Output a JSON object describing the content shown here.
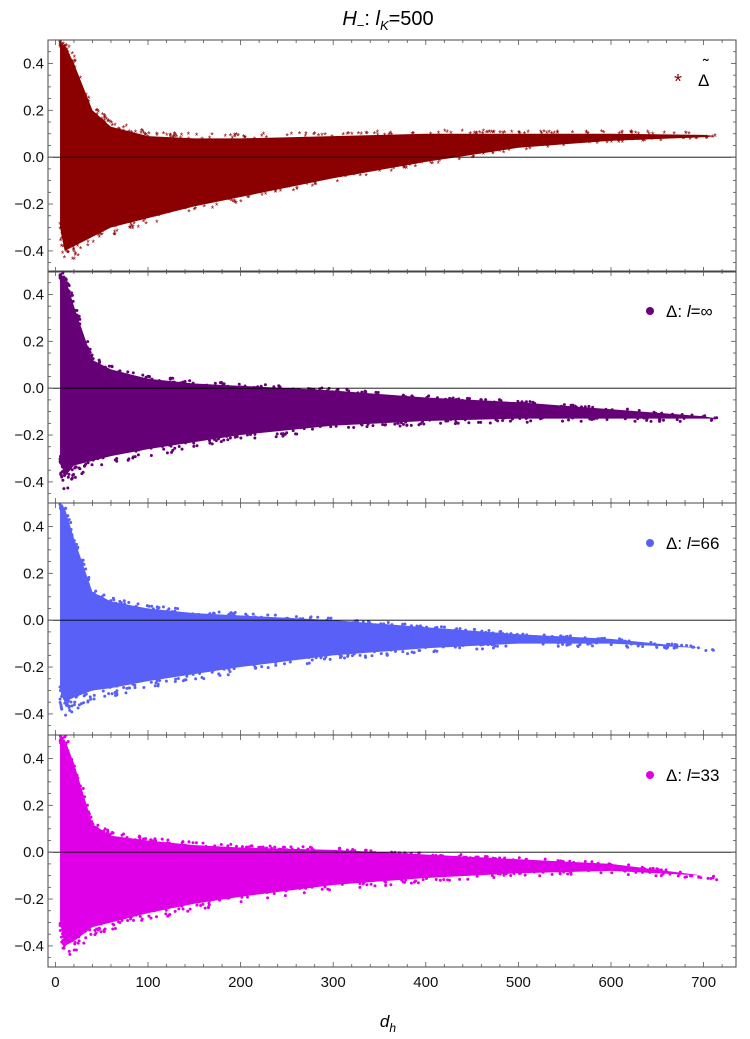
{
  "chart_data": {
    "type": "scatter",
    "title": {
      "main": "H",
      "main_sub": "−",
      "sep": ": ",
      "param": "l",
      "param_sub": "K",
      "value": "=500"
    },
    "xlabel": {
      "main": "d",
      "sub": "h"
    },
    "xlim": [
      -8,
      735
    ],
    "xticks": [
      0,
      100,
      200,
      300,
      400,
      500,
      600,
      700
    ],
    "xtick_labels": [
      "0",
      "100",
      "200",
      "300",
      "400",
      "500",
      "600",
      "700"
    ],
    "ylim": [
      -0.49,
      0.5
    ],
    "yticks": [
      -0.4,
      -0.2,
      0.0,
      0.2,
      0.4
    ],
    "ytick_labels": [
      "−0.4",
      "−0.2",
      "0.0",
      "0.2",
      "0.4"
    ],
    "grid": false,
    "zero_line": true,
    "legend_position": "top-right",
    "panels": [
      {
        "legend": {
          "symbol": "Δ",
          "tilde": "˜",
          "suffix": ""
        },
        "marker": "star",
        "color": "#8B0000",
        "envelope": {
          "d": [
            5,
            10,
            20,
            40,
            60,
            100,
            150,
            200,
            300,
            400,
            500,
            600,
            700,
            715
          ],
          "upper": [
            0.48,
            0.48,
            0.4,
            0.2,
            0.13,
            0.09,
            0.08,
            0.08,
            0.09,
            0.1,
            0.1,
            0.1,
            0.095,
            0.09
          ],
          "lower": [
            -0.3,
            -0.4,
            -0.38,
            -0.34,
            -0.3,
            -0.26,
            -0.21,
            -0.17,
            -0.09,
            -0.02,
            0.04,
            0.07,
            0.085,
            0.09
          ]
        }
      },
      {
        "legend": {
          "symbol": "Δ",
          "tilde": "",
          "suffix": ": l=∞"
        },
        "marker": "dot",
        "color": "#660077",
        "envelope": {
          "d": [
            5,
            10,
            20,
            40,
            60,
            100,
            150,
            200,
            300,
            400,
            500,
            600,
            700,
            715
          ],
          "upper": [
            0.48,
            0.48,
            0.35,
            0.12,
            0.08,
            0.04,
            0.02,
            0.01,
            -0.01,
            -0.04,
            -0.06,
            -0.09,
            -0.12,
            -0.13
          ],
          "lower": [
            -0.3,
            -0.38,
            -0.33,
            -0.31,
            -0.29,
            -0.26,
            -0.23,
            -0.2,
            -0.16,
            -0.14,
            -0.13,
            -0.13,
            -0.13,
            -0.13
          ]
        }
      },
      {
        "legend": {
          "symbol": "Δ",
          "tilde": "",
          "suffix": ": l=66"
        },
        "marker": "dot",
        "color": "#5860F8",
        "envelope": {
          "d": [
            5,
            10,
            20,
            40,
            60,
            100,
            150,
            200,
            300,
            400,
            500,
            600,
            700,
            715
          ],
          "upper": [
            0.48,
            0.48,
            0.35,
            0.12,
            0.08,
            0.05,
            0.03,
            0.02,
            0.0,
            -0.03,
            -0.06,
            -0.08,
            -0.12,
            -0.13
          ],
          "lower": [
            -0.3,
            -0.35,
            -0.33,
            -0.3,
            -0.29,
            -0.26,
            -0.23,
            -0.2,
            -0.15,
            -0.12,
            -0.1,
            -0.1,
            -0.12,
            -0.13
          ]
        }
      },
      {
        "legend": {
          "symbol": "Δ",
          "tilde": "",
          "suffix": ": l=33"
        },
        "marker": "dot",
        "color": "#E000E8",
        "envelope": {
          "d": [
            5,
            10,
            20,
            40,
            60,
            100,
            150,
            200,
            300,
            400,
            500,
            600,
            700,
            715
          ],
          "upper": [
            0.48,
            0.48,
            0.38,
            0.12,
            0.07,
            0.05,
            0.03,
            0.02,
            0.01,
            -0.01,
            -0.03,
            -0.05,
            -0.1,
            -0.11
          ],
          "lower": [
            -0.3,
            -0.4,
            -0.38,
            -0.32,
            -0.3,
            -0.26,
            -0.22,
            -0.19,
            -0.14,
            -0.11,
            -0.09,
            -0.08,
            -0.1,
            -0.11
          ]
        }
      }
    ]
  }
}
